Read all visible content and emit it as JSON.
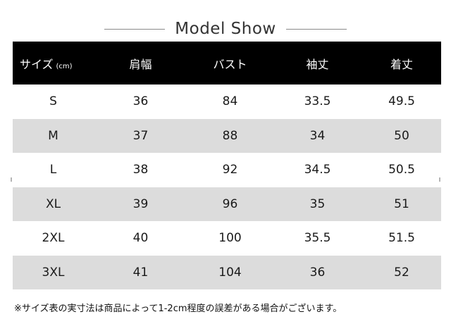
{
  "title": "Model Show",
  "table": {
    "header": {
      "size_label": "サイズ",
      "size_unit": "(cm)",
      "col1": "肩幅",
      "col2": "バスト",
      "col3": "袖丈",
      "col4": "着丈"
    },
    "rows": [
      [
        "S",
        "36",
        "84",
        "33.5",
        "49.5"
      ],
      [
        "M",
        "37",
        "88",
        "34",
        "50"
      ],
      [
        "L",
        "38",
        "92",
        "34.5",
        "50.5"
      ],
      [
        "XL",
        "39",
        "96",
        "35",
        "51"
      ],
      [
        "2XL",
        "40",
        "100",
        "35.5",
        "51.5"
      ],
      [
        "3XL",
        "41",
        "104",
        "36",
        "52"
      ]
    ]
  },
  "note": "※サイズ表の実寸法は商品によって1-2cm程度の誤差がある場合がございます。"
}
